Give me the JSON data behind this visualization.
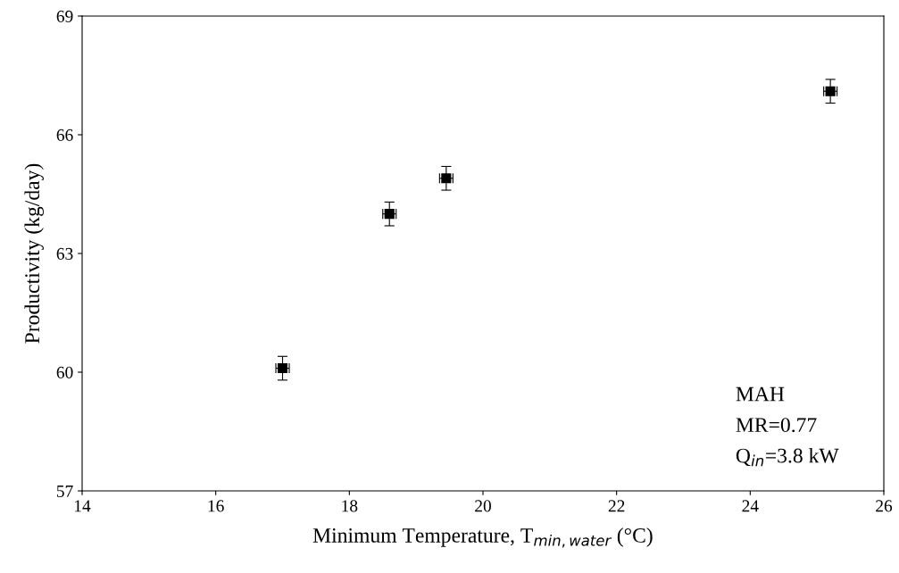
{
  "chart_data": {
    "type": "scatter",
    "xlabel": "Minimum Temperature, T$_{min,water}$ (°C)",
    "ylabel": "Productivity (kg/day)",
    "x": [
      17.0,
      18.6,
      19.45,
      25.2
    ],
    "values": [
      60.1,
      64.0,
      64.9,
      67.1
    ],
    "errors": [
      0.3,
      0.3,
      0.3,
      0.3
    ],
    "xerrors": [
      0.1,
      0.1,
      0.1,
      0.1
    ],
    "color": "#000000",
    "marker": "square",
    "grid": false,
    "xlim": [
      14,
      26
    ],
    "xticks": [
      14,
      16,
      18,
      20,
      22,
      24,
      26
    ],
    "ylim": [
      57,
      69
    ],
    "yticks": [
      57,
      60,
      63,
      66,
      69
    ],
    "annotations": [
      "MAH",
      "MR=0.77",
      "Q$_{in}$=3.8 kW"
    ]
  }
}
